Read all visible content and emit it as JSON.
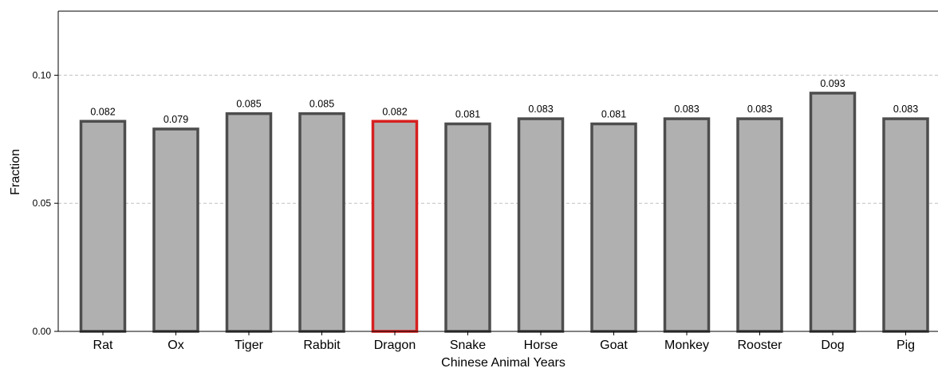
{
  "chart_data": {
    "type": "bar",
    "categories": [
      "Rat",
      "Ox",
      "Tiger",
      "Rabbit",
      "Dragon",
      "Snake",
      "Horse",
      "Goat",
      "Monkey",
      "Rooster",
      "Dog",
      "Pig"
    ],
    "values": [
      0.082,
      0.079,
      0.085,
      0.085,
      0.082,
      0.081,
      0.083,
      0.081,
      0.083,
      0.083,
      0.093,
      0.083
    ],
    "value_labels": [
      "0.082",
      "0.079",
      "0.085",
      "0.085",
      "0.082",
      "0.081",
      "0.083",
      "0.081",
      "0.083",
      "0.083",
      "0.093",
      "0.083"
    ],
    "highlight_category": "Dragon",
    "title": "",
    "xlabel": "Chinese Animal Years",
    "ylabel": "Fraction",
    "ylim": [
      0,
      0.125
    ],
    "yticks": [
      0.0,
      0.05,
      0.1
    ],
    "ytick_labels": [
      "0.00",
      "0.05",
      "0.10"
    ],
    "grid": "horizontal dashed",
    "colors": {
      "bar_fill": "#b0b0b0",
      "bar_edge": "#4d4d4d",
      "highlight_edge": "#d62020",
      "grid": "#c0c0c0",
      "axis": "#000000"
    }
  }
}
